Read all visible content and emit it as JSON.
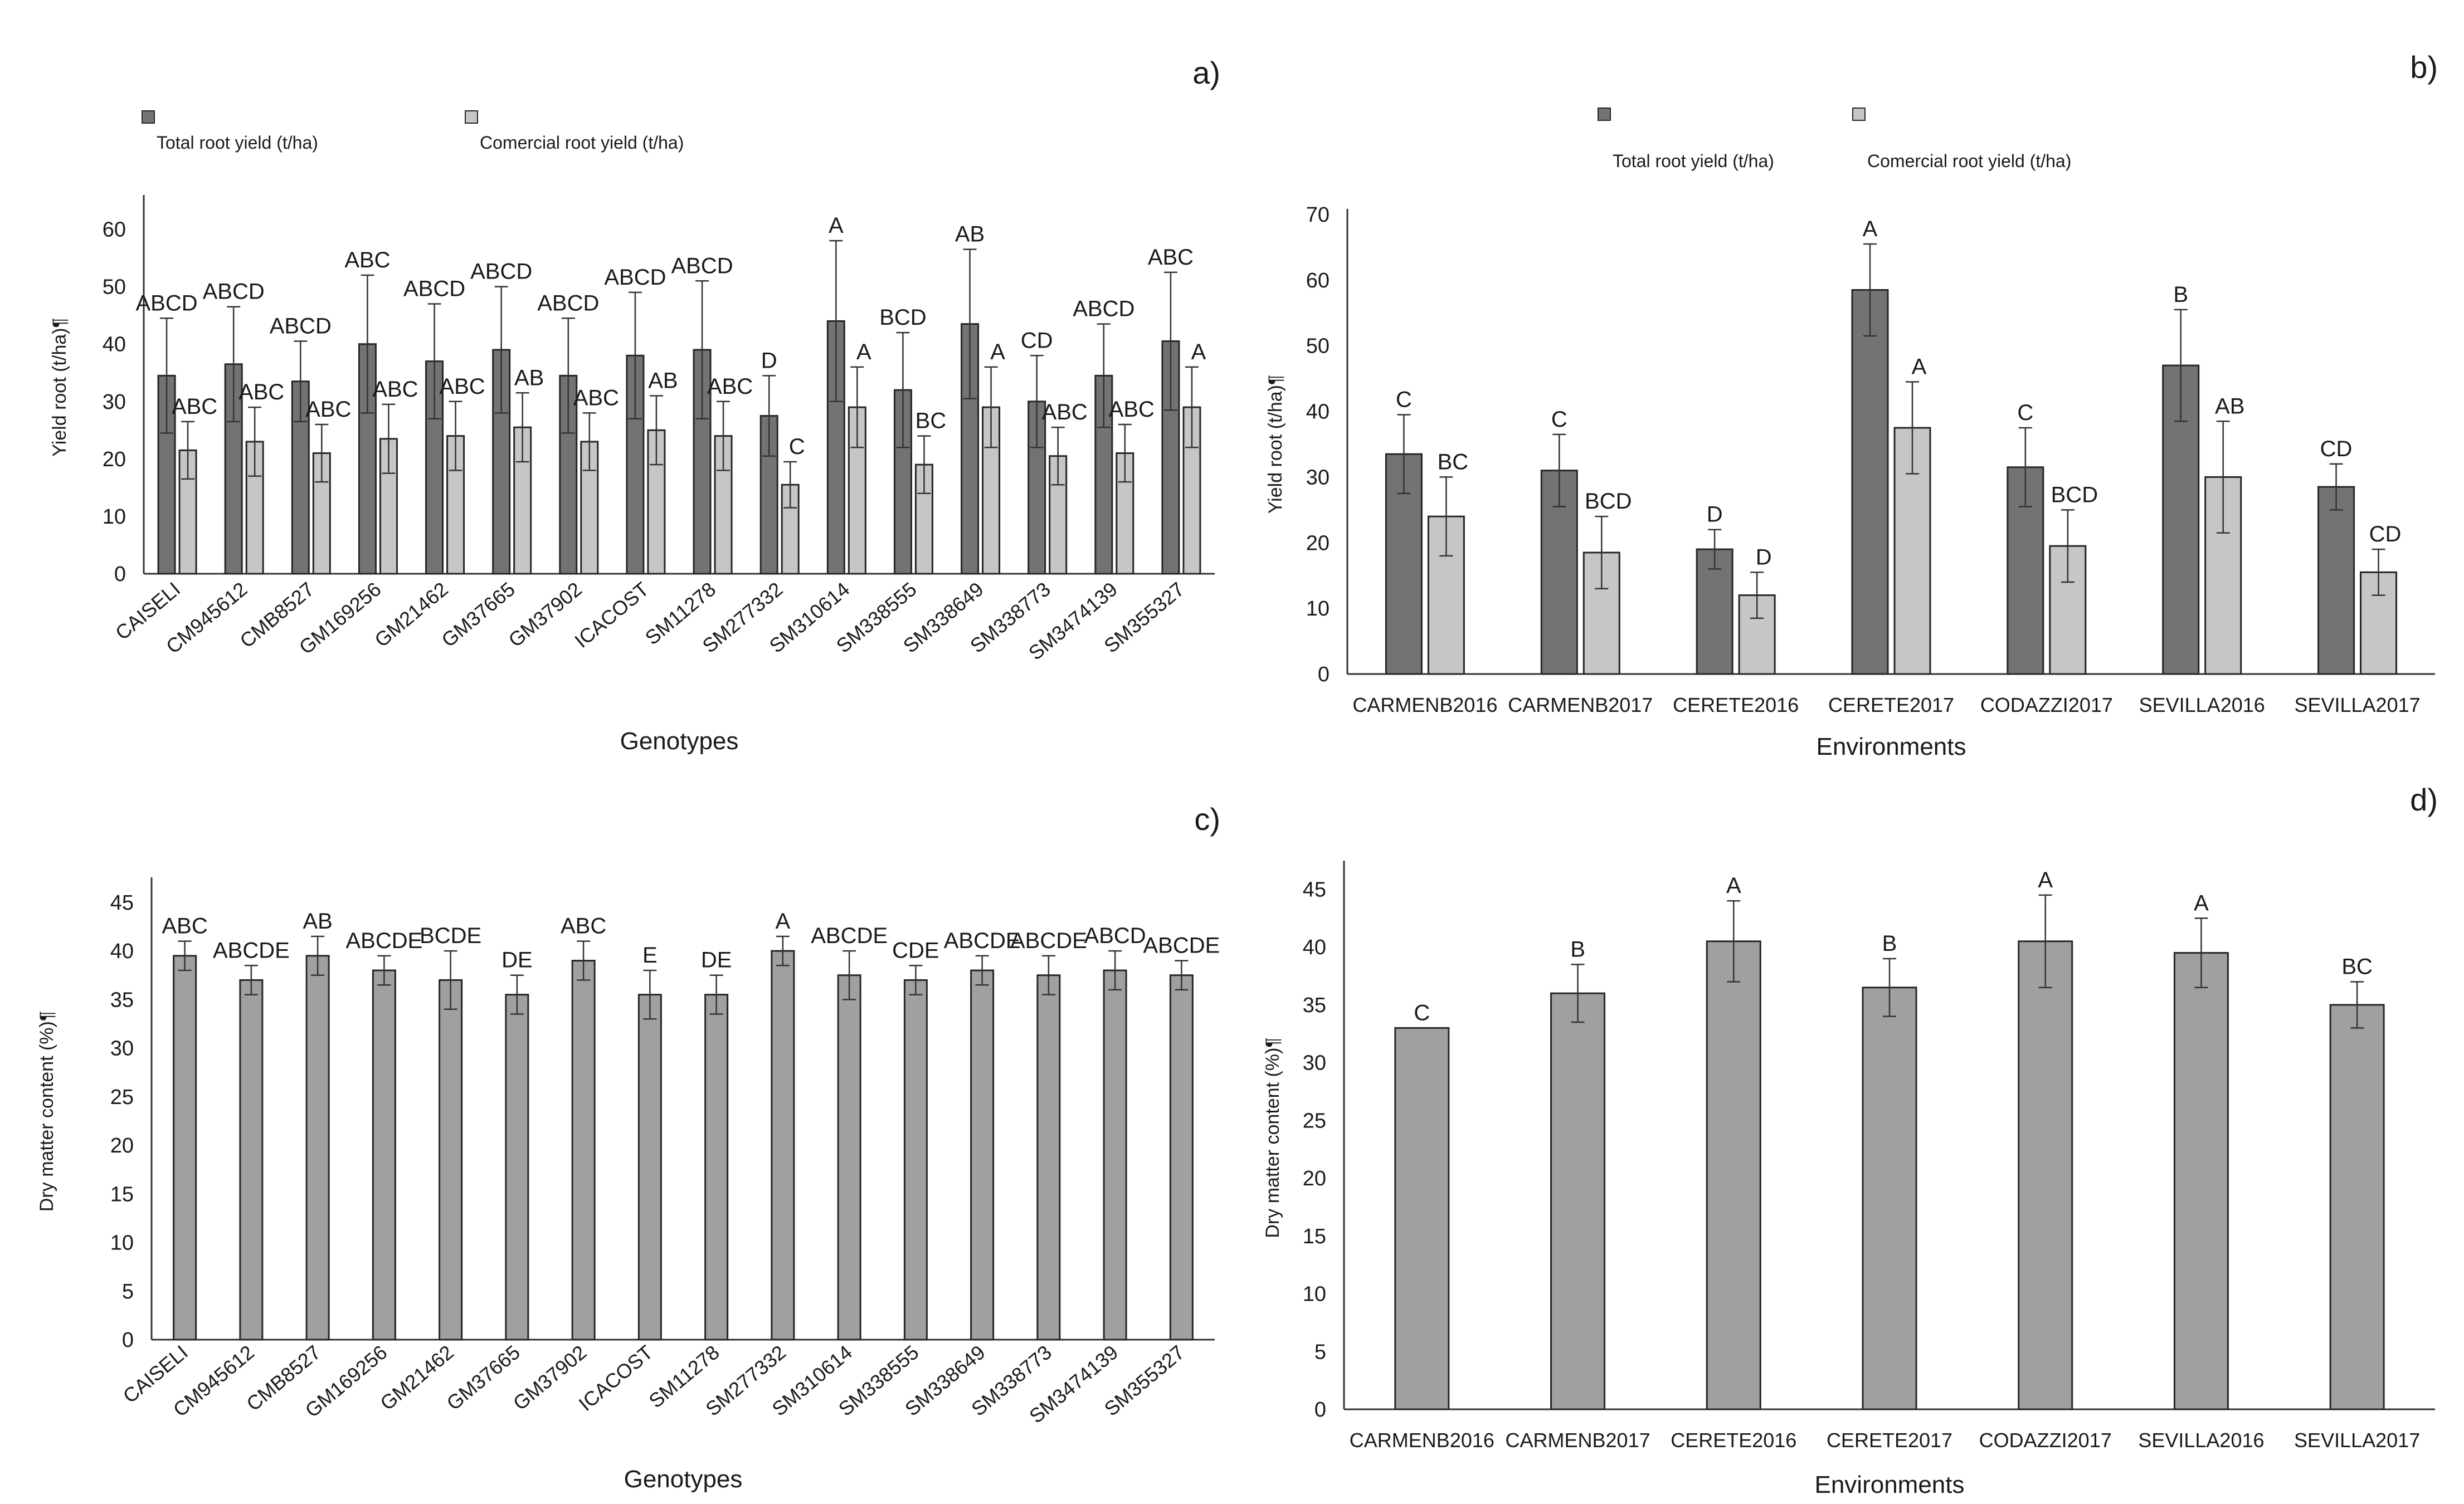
{
  "colors": {
    "total": "#737373",
    "commercial": "#c6c6c6",
    "single": "#a0a0a0"
  },
  "chart_data": [
    {
      "panel": "a)",
      "type": "bar",
      "xlabel": "Genotypes",
      "ylabel": "Yield root (t/ha)¶",
      "ylim": [
        0,
        65
      ],
      "yticks": [
        0,
        10,
        20,
        30,
        40,
        50,
        60
      ],
      "categories": [
        "CAISELI",
        "CM945612",
        "CMB8527",
        "GM169256",
        "GM21462",
        "GM37665",
        "GM37902",
        "ICACOST",
        "SM11278",
        "SM277332",
        "SM310614",
        "SM338555",
        "SM338649",
        "SM338773",
        "SM3474139",
        "SM355327"
      ],
      "series": [
        {
          "name": "Total root yield (t/ha)",
          "key": "total",
          "values": [
            34.5,
            36.5,
            33.5,
            40,
            37,
            39,
            34.5,
            38,
            39,
            27.5,
            44,
            32,
            43.5,
            30,
            34.5,
            40.5
          ],
          "errors": [
            10,
            10,
            7,
            12,
            10,
            11,
            10,
            11,
            12,
            7,
            14,
            10,
            13,
            8,
            9,
            12
          ],
          "labels": [
            "ABCD",
            "ABCD",
            "ABCD",
            "ABC",
            "ABCD",
            "ABCD",
            "ABCD",
            "ABCD",
            "ABCD",
            "D",
            "A",
            "BCD",
            "AB",
            "CD",
            "ABCD",
            "ABC"
          ]
        },
        {
          "name": "Comercial root yield (t/ha)",
          "key": "commercial",
          "values": [
            21.5,
            23,
            21,
            23.5,
            24,
            25.5,
            23,
            25,
            24,
            15.5,
            29,
            19,
            29,
            20.5,
            21,
            29
          ],
          "errors": [
            5,
            6,
            5,
            6,
            6,
            6,
            5,
            6,
            6,
            4,
            7,
            5,
            7,
            5,
            5,
            7
          ],
          "labels": [
            "ABC",
            "ABC",
            "ABC",
            "ABC",
            "ABC",
            "AB",
            "ABC",
            "AB",
            "ABC",
            "C",
            "A",
            "BC",
            "A",
            "ABC",
            "ABC",
            "A"
          ]
        }
      ]
    },
    {
      "panel": "b)",
      "type": "bar",
      "xlabel": "Environments",
      "ylabel": "Yield root (t/ha)¶",
      "ylim": [
        0,
        70
      ],
      "yticks": [
        0,
        10,
        20,
        30,
        40,
        50,
        60,
        70
      ],
      "categories": [
        "CARMENB2016",
        "CARMENB2017",
        "CERETE2016",
        "CERETE2017",
        "CODAZZI2017",
        "SEVILLA2016",
        "SEVILLA2017"
      ],
      "series": [
        {
          "name": "Total root yield (t/ha)",
          "key": "total",
          "values": [
            33.5,
            31,
            19,
            58.5,
            31.5,
            47,
            28.5
          ],
          "errors": [
            6,
            5.5,
            3,
            7,
            6,
            8.5,
            3.5
          ],
          "labels": [
            "C",
            "C",
            "D",
            "A",
            "C",
            "B",
            "CD"
          ]
        },
        {
          "name": "Comercial root yield (t/ha)",
          "key": "commercial",
          "values": [
            24,
            18.5,
            12,
            37.5,
            19.5,
            30,
            15.5
          ],
          "errors": [
            6,
            5.5,
            3.5,
            7,
            5.5,
            8.5,
            3.5
          ],
          "labels": [
            "BC",
            "BCD",
            "D",
            "A",
            "BCD",
            "AB",
            "CD"
          ]
        }
      ]
    },
    {
      "panel": "c)",
      "type": "bar",
      "xlabel": "Genotypes",
      "ylabel": "Dry matter content (%)¶",
      "ylim": [
        0,
        47
      ],
      "yticks": [
        0,
        5,
        10,
        15,
        20,
        25,
        30,
        35,
        40,
        45
      ],
      "categories": [
        "CAISELI",
        "CM945612",
        "CMB8527",
        "GM169256",
        "GM21462",
        "GM37665",
        "GM37902",
        "ICACOST",
        "SM11278",
        "SM277332",
        "SM310614",
        "SM338555",
        "SM338649",
        "SM338773",
        "SM3474139",
        "SM355327"
      ],
      "series": [
        {
          "name": "Dry matter content (%)",
          "key": "single",
          "values": [
            39.5,
            37,
            39.5,
            38,
            37,
            35.5,
            39,
            35.5,
            35.5,
            40,
            37.5,
            37,
            38,
            37.5,
            38,
            37.5
          ],
          "errors": [
            1.5,
            1.5,
            2,
            1.5,
            3,
            2,
            2,
            2.5,
            2,
            1.5,
            2.5,
            1.5,
            1.5,
            2,
            2,
            1.5
          ],
          "labels": [
            "ABC",
            "ABCDE",
            "AB",
            "ABCDE",
            "BCDE",
            "DE",
            "ABC",
            "E",
            "DE",
            "A",
            "ABCDE",
            "CDE",
            "ABCDE",
            "ABCDE",
            "ABCD",
            "ABCDE"
          ]
        }
      ]
    },
    {
      "panel": "d)",
      "type": "bar",
      "xlabel": "Environments",
      "ylabel": "Dry matter content (%)¶",
      "ylim": [
        0,
        47
      ],
      "yticks": [
        0,
        5,
        10,
        15,
        20,
        25,
        30,
        35,
        40,
        45
      ],
      "categories": [
        "CARMENB2016",
        "CARMENB2017",
        "CERETE2016",
        "CERETE2017",
        "CODAZZI2017",
        "SEVILLA2016",
        "SEVILLA2017"
      ],
      "series": [
        {
          "name": "Dry matter content (%)",
          "key": "single",
          "values": [
            33,
            36,
            40.5,
            36.5,
            40.5,
            39.5,
            35
          ],
          "errors": [
            0,
            2.5,
            3.5,
            2.5,
            4,
            3,
            2
          ],
          "labels": [
            "C",
            "B",
            "A",
            "B",
            "A",
            "A",
            "BC"
          ]
        }
      ]
    }
  ]
}
